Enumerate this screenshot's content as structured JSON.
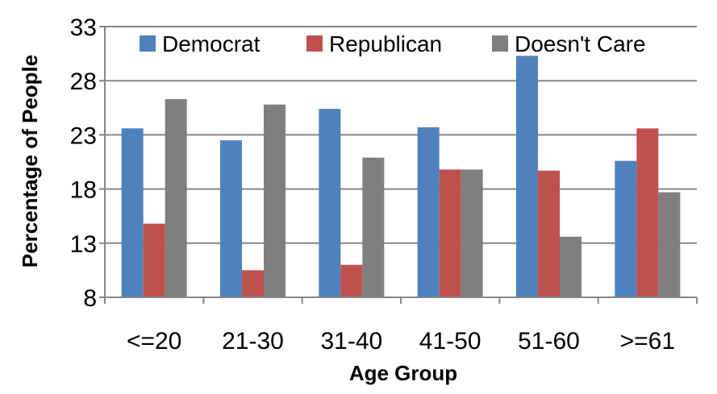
{
  "chart_data": {
    "type": "bar",
    "title": "",
    "xlabel": "Age Group",
    "ylabel": "Percentage of People",
    "ylim": [
      8,
      33
    ],
    "yticks": [
      8,
      13,
      18,
      23,
      28,
      33
    ],
    "grid": true,
    "legend_position": "top",
    "categories": [
      "<=20",
      "21-30",
      "31-40",
      "41-50",
      "51-60",
      ">=61"
    ],
    "series": [
      {
        "name": "Democrat",
        "color": "#4f81bd",
        "values": [
          23.6,
          22.5,
          25.4,
          23.7,
          30.3,
          20.6
        ]
      },
      {
        "name": "Republican",
        "color": "#c0504d",
        "values": [
          14.8,
          10.5,
          11.0,
          19.8,
          19.7,
          23.6
        ]
      },
      {
        "name": "Doesn't Care",
        "color": "#7f7f7f",
        "values": [
          26.3,
          25.8,
          20.9,
          19.8,
          13.6,
          17.7
        ]
      }
    ]
  }
}
